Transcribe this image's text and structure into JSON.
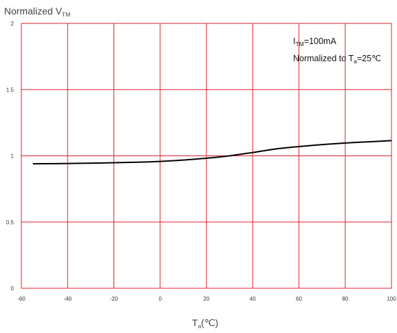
{
  "chart_data": {
    "type": "line",
    "ylabel": {
      "main": "Normalized V",
      "sub": "TM"
    },
    "xlabel": {
      "main": "T",
      "sub": "a",
      "unit": "(℃)"
    },
    "annotations": [
      {
        "main": "I",
        "sub": "TM",
        "rest": "=100mA"
      },
      {
        "main": "Normalized to T",
        "sub": "a",
        "rest": "=25℃"
      }
    ],
    "xlim": [
      -60,
      100
    ],
    "ylim": [
      0,
      2
    ],
    "x_ticks": [
      "-60",
      "-40",
      "-20",
      "0",
      "20",
      "40",
      "60",
      "80",
      "100"
    ],
    "y_ticks": [
      "0",
      "0.5",
      "1",
      "1.5",
      "2"
    ],
    "grid": true,
    "colors": {
      "grid": "#e0202a",
      "line": "#000000"
    },
    "series": [
      {
        "x": [
          -55,
          -40,
          -25,
          -10,
          0,
          10,
          20,
          25,
          30,
          40,
          50,
          60,
          70,
          80,
          90,
          100
        ],
        "y": [
          0.94,
          0.942,
          0.946,
          0.952,
          0.958,
          0.968,
          0.982,
          0.99,
          1.0,
          1.025,
          1.052,
          1.07,
          1.085,
          1.097,
          1.106,
          1.115
        ]
      }
    ]
  }
}
